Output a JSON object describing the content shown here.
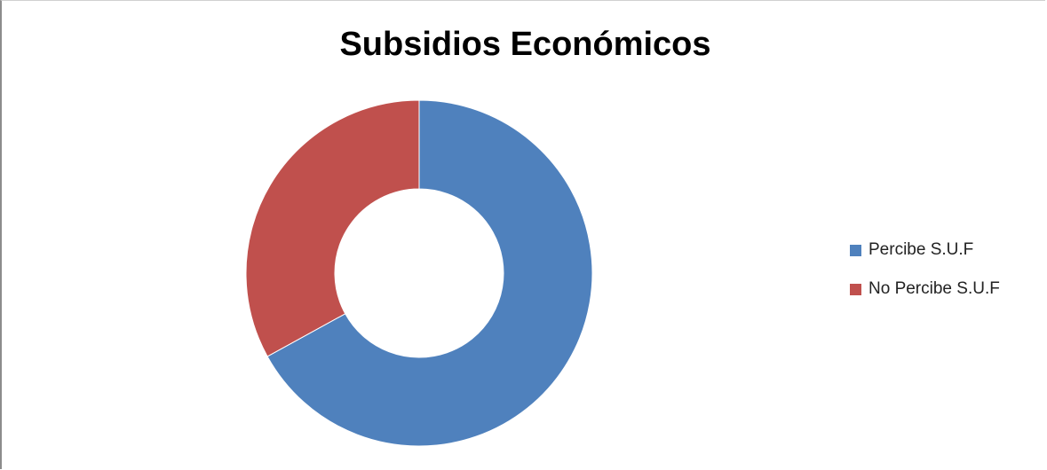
{
  "chart_data": {
    "type": "pie",
    "title": "Subsidios Económicos",
    "categories": [
      "Percibe S.U.F",
      "No Percibe S.U.F"
    ],
    "values": [
      67,
      33
    ],
    "colors": [
      "#4f81bd",
      "#c0504d"
    ],
    "donut": true,
    "legend": "right"
  }
}
